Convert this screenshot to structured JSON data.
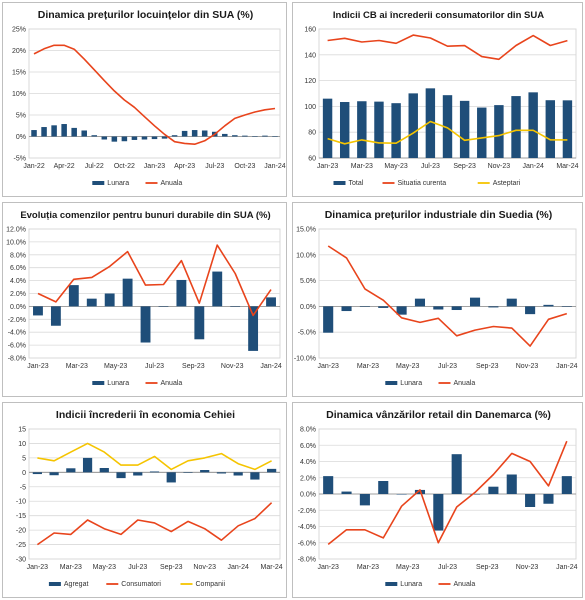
{
  "colors": {
    "bar": "#1f4e79",
    "line": "#e8441c",
    "line2": "#f5c400",
    "grid": "#d9d9d9",
    "axis": "#888888"
  },
  "chart_data": [
    {
      "type": "bar+line",
      "title": "Dinamica prețurilor locuințelor din SUA (%)",
      "y_ticks": [
        "25%",
        "20%",
        "15%",
        "10%",
        "5%",
        "0%",
        "-5%"
      ],
      "ylim": [
        -5,
        25
      ],
      "x_ticks": [
        "Jan-22",
        "Apr-22",
        "Jul-22",
        "Oct-22",
        "Jan-23",
        "Apr-23",
        "Jul-23",
        "Oct-23",
        "Jan-24"
      ],
      "n": 25,
      "bars": {
        "name": "Lunara",
        "values": [
          1.5,
          2.2,
          2.6,
          2.9,
          2.0,
          1.4,
          0.3,
          -0.7,
          -1.2,
          -1.1,
          -0.8,
          -0.7,
          -0.6,
          -0.5,
          0.3,
          1.3,
          1.5,
          1.4,
          1.1,
          0.6,
          0.3,
          0.2,
          0.1,
          0.2,
          0.1
        ]
      },
      "lines": [
        {
          "name": "Anuala",
          "values": [
            19.2,
            20.4,
            21.2,
            21.2,
            20.3,
            18.0,
            15.5,
            13.0,
            10.6,
            8.5,
            6.8,
            4.6,
            2.5,
            0.5,
            -1.2,
            -1.6,
            -1.8,
            -1.0,
            0.5,
            2.5,
            4.2,
            5.0,
            5.7,
            6.2,
            6.5
          ]
        }
      ]
    },
    {
      "type": "bar+line",
      "title": "Indicii CB ai încrederii consumatorilor din SUA",
      "y_ticks": [
        "160",
        "140",
        "120",
        "100",
        "80",
        "60"
      ],
      "ylim": [
        60,
        160
      ],
      "x_ticks": [
        "Jan-23",
        "Mar-23",
        "May-23",
        "Jul-23",
        "Sep-23",
        "Nov-23",
        "Jan-24",
        "Mar-24"
      ],
      "n": 15,
      "bars": {
        "name": "Total",
        "values": [
          106.0,
          103.4,
          104.0,
          103.7,
          102.5,
          110.1,
          114.0,
          108.7,
          104.3,
          99.1,
          101.0,
          108.0,
          110.9,
          104.8,
          104.7
        ]
      },
      "lines": [
        {
          "name": "Situatia curenta",
          "values": [
            151.1,
            152.8,
            149.9,
            151.1,
            148.9,
            155.3,
            153.0,
            146.7,
            147.1,
            138.6,
            136.5,
            147.2,
            154.9,
            147.2,
            151.0
          ]
        },
        {
          "name": "Asteptari",
          "values": [
            75.0,
            71.0,
            74.0,
            71.7,
            71.5,
            79.3,
            88.3,
            83.3,
            73.7,
            75.6,
            77.4,
            81.5,
            81.5,
            74.1,
            74.0
          ]
        }
      ]
    },
    {
      "type": "bar+line",
      "title": "Evoluția comenzilor pentru bunuri durabile din SUA (%)",
      "y_ticks": [
        "12.0%",
        "10.0%",
        "8.0%",
        "6.0%",
        "4.0%",
        "2.0%",
        "0.0%",
        "-2.0%",
        "-4.0%",
        "-6.0%",
        "-8.0%"
      ],
      "ylim": [
        -8,
        12
      ],
      "x_ticks": [
        "Jan-23",
        "Mar-23",
        "May-23",
        "Jul-23",
        "Sep-23",
        "Nov-23",
        "Jan-24"
      ],
      "n": 14,
      "bars": {
        "name": "Lunara",
        "values": [
          -1.4,
          -3.0,
          3.3,
          1.2,
          2.0,
          4.3,
          -5.6,
          0.0,
          4.1,
          -5.1,
          5.4,
          0.0,
          -6.9,
          1.4
        ]
      },
      "lines": [
        {
          "name": "Anuala",
          "values": [
            2.0,
            0.7,
            4.2,
            4.5,
            6.2,
            8.5,
            3.3,
            3.4,
            7.1,
            0.5,
            9.5,
            5.1,
            -1.4,
            2.6
          ]
        }
      ]
    },
    {
      "type": "bar+line",
      "title": "Dinamica prețurilor industriale din Suedia (%)",
      "y_ticks": [
        "15.0%",
        "10.0%",
        "5.0%",
        "0.0%",
        "-5.0%",
        "-10.0%"
      ],
      "ylim": [
        -10,
        15
      ],
      "x_ticks": [
        "Jan-23",
        "Mar-23",
        "May-23",
        "Jul-23",
        "Sep-23",
        "Nov-23",
        "Jan-24"
      ],
      "n": 14,
      "bars": {
        "name": "Lunara",
        "values": [
          -5.1,
          -0.9,
          -0.1,
          -0.3,
          -1.6,
          1.5,
          -0.6,
          -0.7,
          1.7,
          -0.2,
          1.5,
          -1.5,
          0.3,
          0.0
        ]
      },
      "lines": [
        {
          "name": "Anuala",
          "values": [
            11.7,
            9.4,
            3.4,
            1.2,
            -2.2,
            -3.1,
            -2.3,
            -5.7,
            -4.6,
            -3.9,
            -4.2,
            -7.7,
            -2.5,
            -1.4
          ]
        }
      ]
    },
    {
      "type": "bar+line",
      "title": "Indicii încrederii în economia Cehiei",
      "y_ticks": [
        "15",
        "10",
        "5",
        "0",
        "-5",
        "-10",
        "-15",
        "-20",
        "-25",
        "-30"
      ],
      "ylim": [
        -30,
        15
      ],
      "x_ticks": [
        "Jan-23",
        "Mar-23",
        "May-23",
        "Jul-23",
        "Sep-23",
        "Nov-23",
        "Jan-24",
        "Mar-24"
      ],
      "n": 15,
      "bars": {
        "name": "Agregat",
        "values": [
          -0.6,
          -1.0,
          1.4,
          5.0,
          1.5,
          -2.0,
          -1.1,
          0.3,
          -3.5,
          0.0,
          0.8,
          -0.4,
          -1.1,
          -2.5,
          1.2
        ]
      },
      "lines": [
        {
          "name": "Consumatori",
          "values": [
            -25.0,
            -21.0,
            -21.5,
            -16.5,
            -19.5,
            -21.5,
            -16.5,
            -17.5,
            -20.5,
            -17.0,
            -19.5,
            -23.5,
            -18.5,
            -16.0,
            -10.5
          ]
        },
        {
          "name": "Companii",
          "values": [
            5.0,
            4.0,
            7.0,
            10.0,
            7.0,
            2.5,
            2.5,
            5.5,
            1.0,
            4.0,
            5.0,
            6.5,
            3.0,
            1.0,
            4.0
          ]
        }
      ]
    },
    {
      "type": "bar+line",
      "title": "Dinamica vânzărilor retail din Danemarca (%)",
      "y_ticks": [
        "8.0%",
        "6.0%",
        "4.0%",
        "2.0%",
        "0.0%",
        "-2.0%",
        "-4.0%",
        "-6.0%",
        "-8.0%"
      ],
      "ylim": [
        -8,
        8
      ],
      "x_ticks": [
        "Jan-23",
        "Mar-23",
        "May-23",
        "Jul-23",
        "Sep-23",
        "Nov-23",
        "Jan-24"
      ],
      "n": 14,
      "bars": {
        "name": "Lunara",
        "values": [
          2.2,
          0.3,
          -1.4,
          1.6,
          0.0,
          0.5,
          -4.5,
          4.9,
          0.0,
          0.9,
          2.4,
          -1.6,
          -1.2,
          2.2
        ]
      },
      "lines": [
        {
          "name": "Anuala",
          "values": [
            -6.2,
            -4.4,
            -4.4,
            -5.4,
            -1.5,
            0.5,
            -6.0,
            -1.6,
            0.2,
            2.4,
            5.0,
            4.0,
            1.0,
            6.5
          ]
        }
      ]
    }
  ]
}
